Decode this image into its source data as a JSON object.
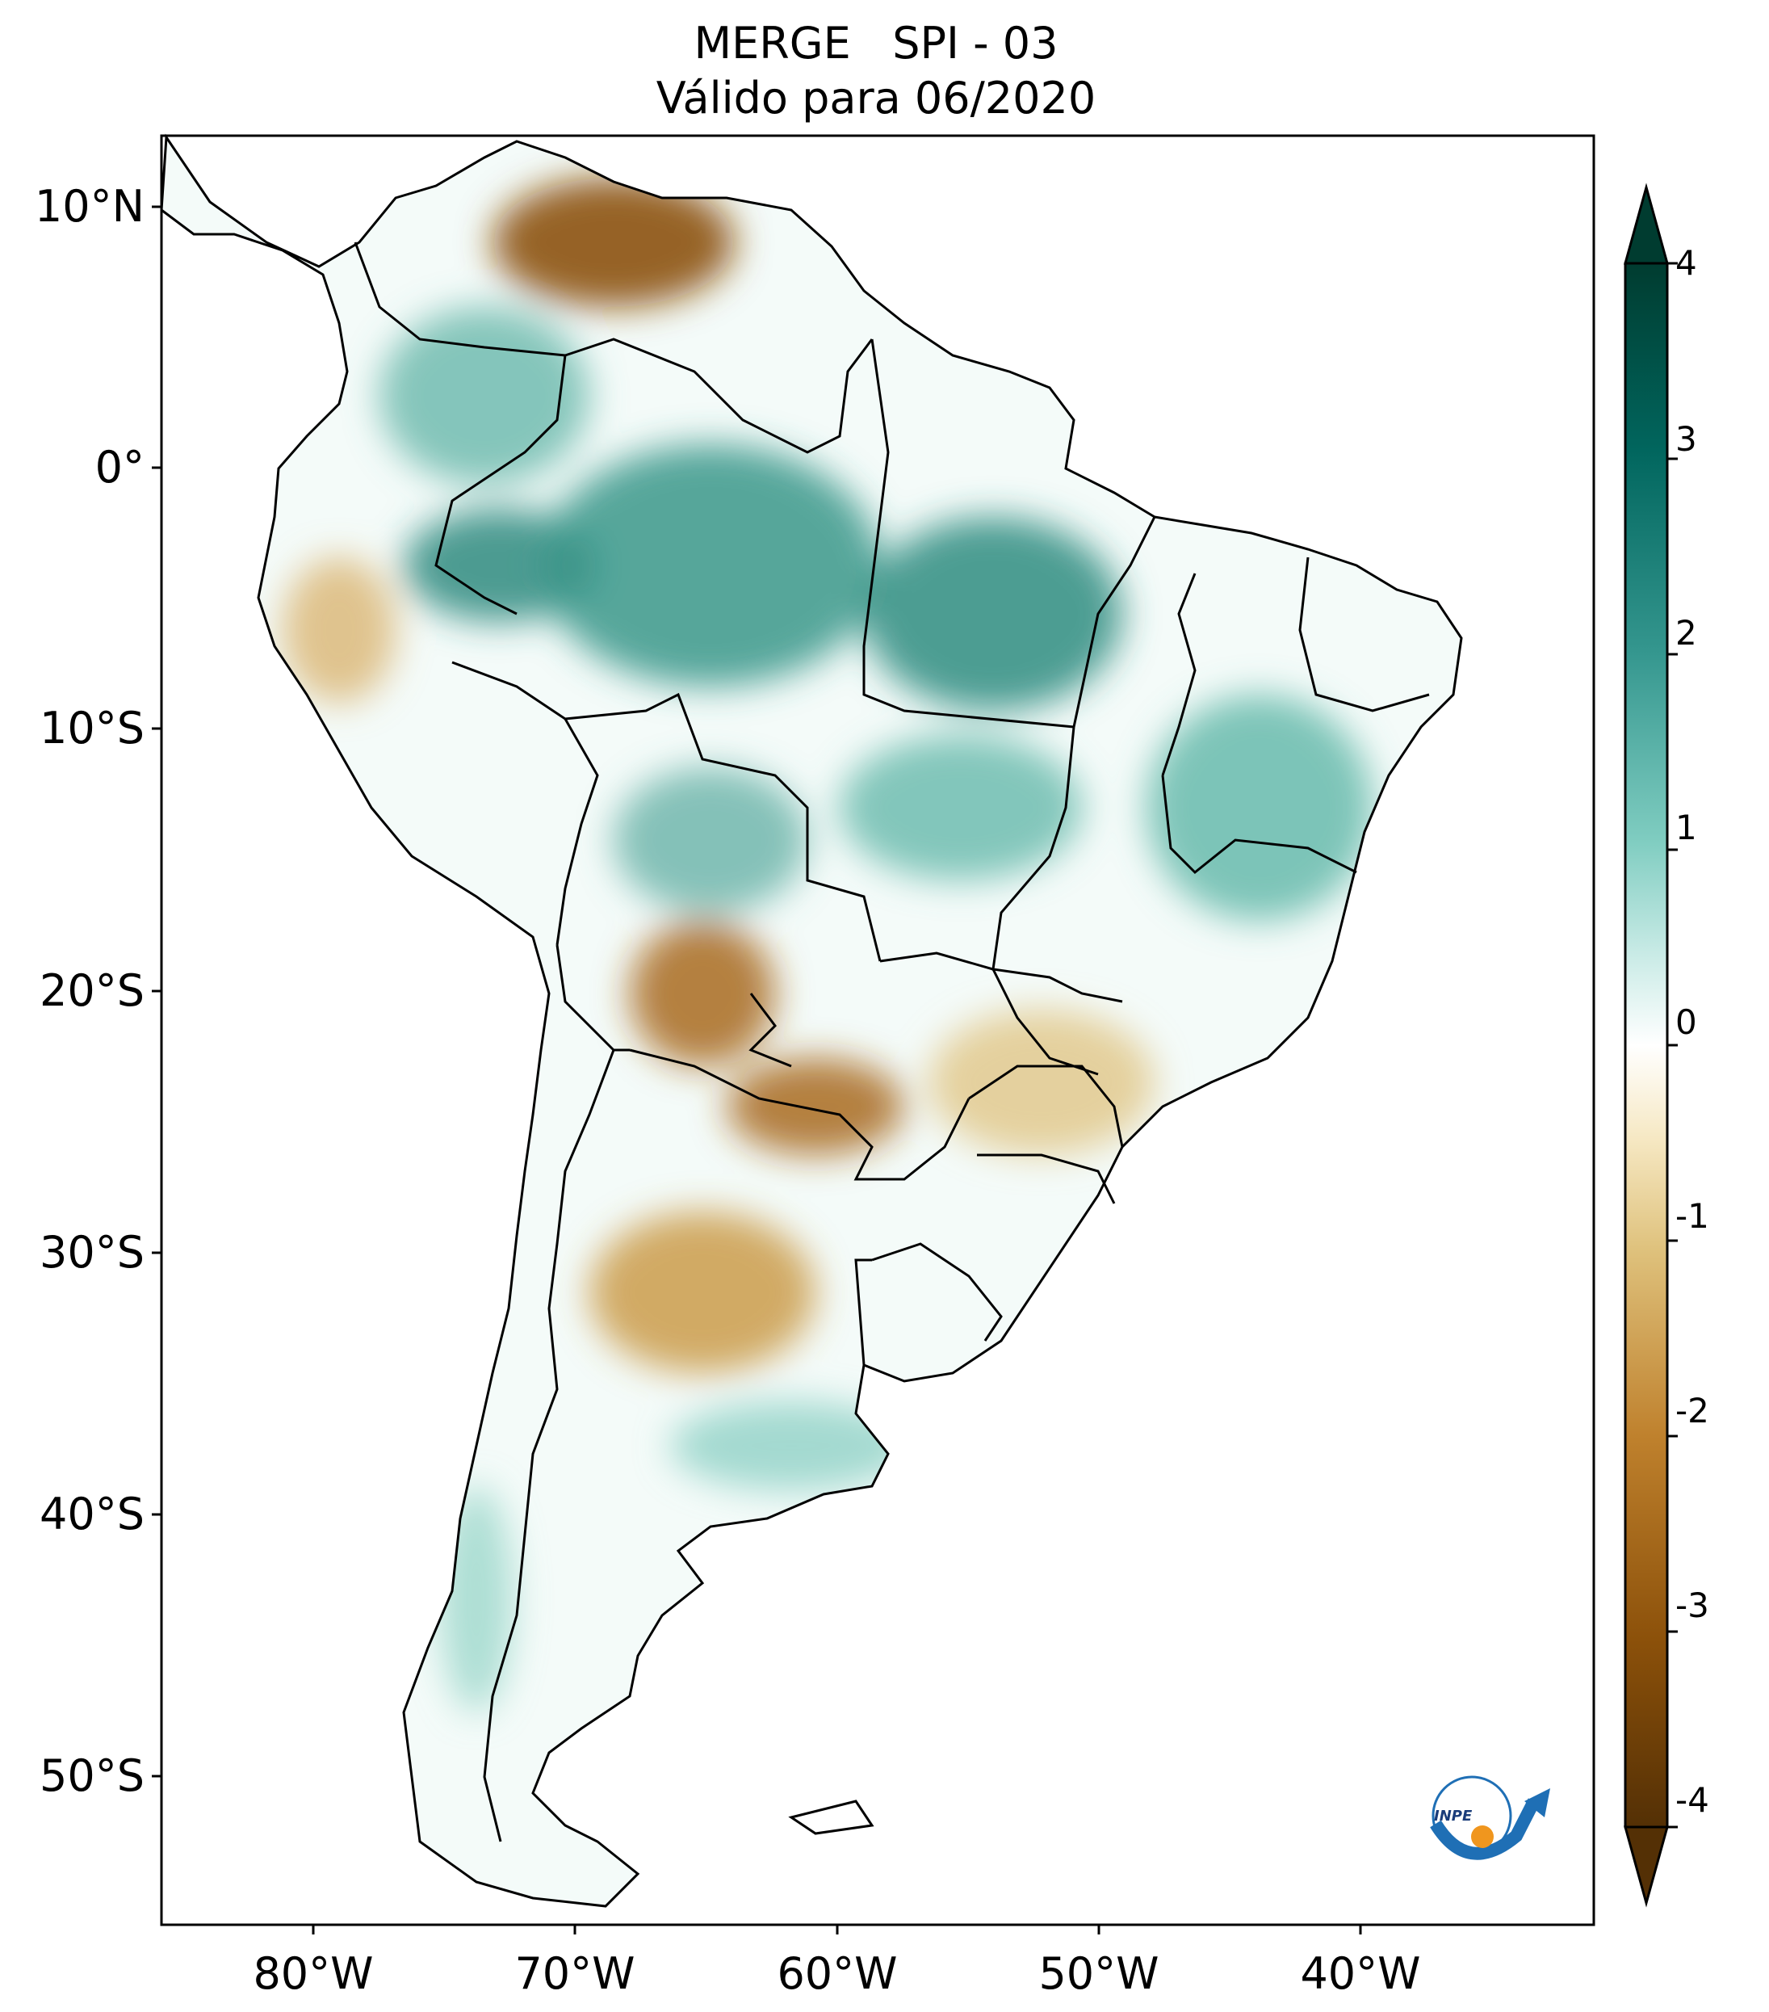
{
  "title": {
    "line1": "MERGE   SPI - 03",
    "line2": "Válido para 06/2020"
  },
  "map": {
    "region": "South America",
    "variable": "SPI - 03",
    "lat_labels": [
      "10°N",
      "0°",
      "10°S",
      "20°S",
      "30°S",
      "40°S",
      "50°S"
    ],
    "lon_labels": [
      "80°W",
      "70°W",
      "60°W",
      "50°W",
      "40°W"
    ]
  },
  "colorbar": {
    "min": -4,
    "max": 4,
    "ticks": [
      "4",
      "3",
      "2",
      "1",
      "0",
      "-1",
      "-2",
      "-3",
      "-4"
    ],
    "colors": {
      "wet_extreme": "#003c30",
      "wet": "#35978f",
      "neutral": "#ffffff",
      "dry": "#dfc27d",
      "dry_extreme": "#543005"
    }
  },
  "logo": {
    "text": "INPE",
    "colors": {
      "arc": "#1f6fb5",
      "dot": "#f0961e"
    }
  }
}
